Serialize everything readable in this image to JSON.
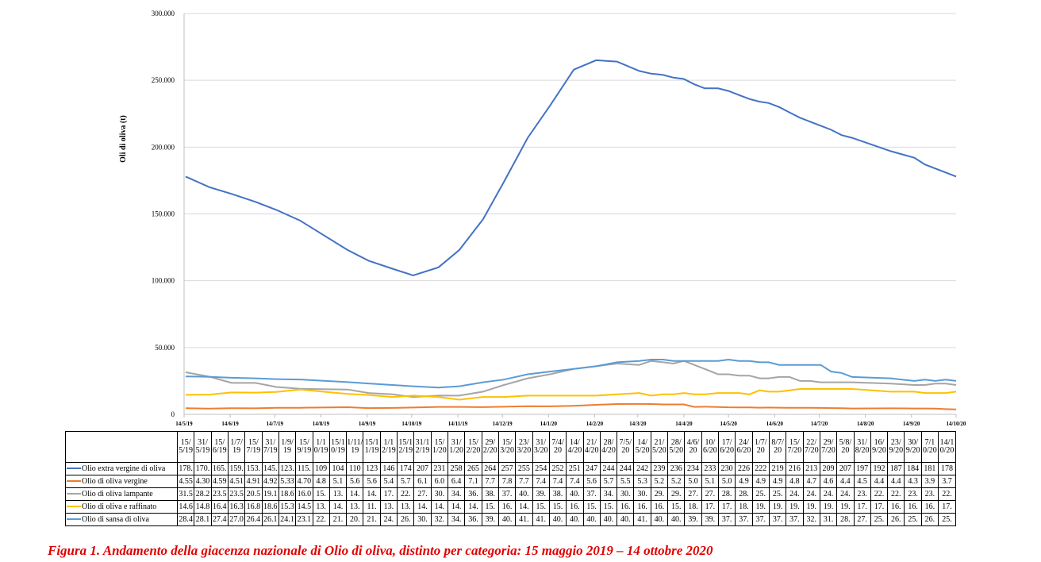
{
  "chart_data": {
    "type": "line",
    "y_label": "Oli di oliva (t)",
    "caption": "Figura 1. Andamento della giacenza nazionale di Olio di oliva, distinto per categoria: 15 maggio 2019 – 14 ottobre 2020",
    "x": [
      "15/5/19",
      "31/5/19",
      "15/6/19",
      "1/7/19",
      "15/7/19",
      "31/7/19",
      "1/9/19",
      "15/9/19",
      "1/10/19",
      "15/10/19",
      "1/11/19",
      "15/11/19",
      "1/12/19",
      "15/12/19",
      "31/12/19",
      "15/1/20",
      "31/1/20",
      "15/2/20",
      "29/2/20",
      "15/3/20",
      "23/3/20",
      "31/3/20",
      "7/4/20",
      "14/4/20",
      "21/4/20",
      "28/4/20",
      "7/5/20",
      "14/5/20",
      "21/5/20",
      "28/5/20",
      "4/6/20",
      "10/6/20",
      "17/6/20",
      "24/6/20",
      "1/7/20",
      "8/7/20",
      "15/7/20",
      "22/7/20",
      "29/7/20",
      "5/8/20",
      "31/8/20",
      "16/9/20",
      "23/9/20",
      "30/9/20",
      "7/10/20",
      "14/10/20"
    ],
    "xlim": [
      "14/5/19",
      "14/10/20"
    ],
    "xticks": [
      "14/5/19",
      "14/6/19",
      "14/7/19",
      "14/8/19",
      "14/9/19",
      "14/10/19",
      "14/11/19",
      "14/12/19",
      "14/1/20",
      "14/2/20",
      "14/3/20",
      "14/4/20",
      "14/5/20",
      "14/6/20",
      "14/7/20",
      "14/8/20",
      "14/9/20",
      "14/10/20"
    ],
    "ylim": [
      0,
      300000
    ],
    "yticks": [
      0,
      {
        "value": 50000,
        "label": "50.000"
      },
      {
        "value": 100000,
        "label": "100.000"
      },
      {
        "value": 150000,
        "label": "150.000"
      },
      {
        "value": 200000,
        "label": "200.000"
      },
      {
        "value": 250000,
        "label": "250.000"
      },
      {
        "value": 300000,
        "label": "300.000"
      }
    ],
    "grid": true,
    "series": [
      {
        "name": "Olio extra vergine di oliva",
        "color": "#4472c4",
        "values": [
          178000,
          170000,
          165000,
          159000,
          153000,
          145000,
          123000,
          115000,
          109000,
          104000,
          110000,
          123000,
          146000,
          174000,
          207000,
          231000,
          258000,
          265000,
          264000,
          257000,
          255000,
          254000,
          252000,
          251000,
          247000,
          244000,
          244000,
          242000,
          239000,
          236000,
          234000,
          233000,
          230000,
          226000,
          222000,
          219000,
          216000,
          213000,
          209000,
          207000,
          197000,
          192000,
          187000,
          184000,
          181000,
          178000
        ],
        "value_labels": [
          "178.",
          "170.",
          "165.",
          "159.",
          "153.",
          "145.",
          "123.",
          "115.",
          "109",
          "104",
          "110",
          "123",
          "146",
          "174",
          "207",
          "231",
          "258",
          "265",
          "264",
          "257",
          "255",
          "254",
          "252",
          "251",
          "247",
          "244",
          "244",
          "242",
          "239",
          "236",
          "234",
          "233",
          "230",
          "226",
          "222",
          "219",
          "216",
          "213",
          "209",
          "207",
          "197",
          "192",
          "187",
          "184",
          "181",
          "178"
        ]
      },
      {
        "name": "Olio di oliva vergine",
        "color": "#ed7d31",
        "values": [
          4550,
          4300,
          4590,
          4510,
          4910,
          4920,
          5330,
          4700,
          4800,
          5100,
          5600,
          5600,
          5400,
          5700,
          6100,
          6000,
          6400,
          7100,
          7700,
          7800,
          7700,
          7400,
          7400,
          7400,
          5600,
          5700,
          5500,
          5300,
          5200,
          5200,
          5000,
          5100,
          5000,
          4900,
          4900,
          4900,
          4800,
          4700,
          4600,
          4400,
          4500,
          4400,
          4400,
          4300,
          3900,
          3700
        ],
        "value_labels": [
          "4.55",
          "4.30",
          "4.59",
          "4.51",
          "4.91",
          "4.92",
          "5.33",
          "4.70",
          "4.8",
          "5.1",
          "5.6",
          "5.6",
          "5.4",
          "5.7",
          "6.1",
          "6.0",
          "6.4",
          "7.1",
          "7.7",
          "7.8",
          "7.7",
          "7.4",
          "7.4",
          "7.4",
          "5.6",
          "5.7",
          "5.5",
          "5.3",
          "5.2",
          "5.2",
          "5.0",
          "5.1",
          "5.0",
          "4.9",
          "4.9",
          "4.9",
          "4.8",
          "4.7",
          "4.6",
          "4.4",
          "4.5",
          "4.4",
          "4.4",
          "4.3",
          "3.9",
          "3.7"
        ]
      },
      {
        "name": "Olio di oliva lampante",
        "color": "#a5a5a5",
        "values": [
          31500,
          28200,
          23500,
          23500,
          20500,
          19100,
          18600,
          16000,
          15000,
          13000,
          14000,
          14000,
          17000,
          22000,
          27000,
          30000,
          34000,
          36000,
          38000,
          37000,
          40000,
          39000,
          38000,
          40000,
          37000,
          34000,
          30000,
          30000,
          29000,
          29000,
          27000,
          27000,
          28000,
          28000,
          25000,
          25000,
          24000,
          24000,
          24000,
          24000,
          23000,
          22000,
          22000,
          23000,
          23000,
          22000
        ],
        "value_labels": [
          "31.5",
          "28.2",
          "23.5",
          "23.5",
          "20.5",
          "19.1",
          "18.6",
          "16.0",
          "15.",
          "13.",
          "14.",
          "14.",
          "17.",
          "22.",
          "27.",
          "30.",
          "34.",
          "36.",
          "38.",
          "37.",
          "40.",
          "39.",
          "38.",
          "40.",
          "37.",
          "34.",
          "30.",
          "30.",
          "29.",
          "29.",
          "27.",
          "27.",
          "28.",
          "28.",
          "25.",
          "25.",
          "24.",
          "24.",
          "24.",
          "24.",
          "23.",
          "22.",
          "22.",
          "23.",
          "23.",
          "22."
        ]
      },
      {
        "name": "Olio di oliva e raffinato",
        "color": "#ffc000",
        "values": [
          14600,
          14800,
          16400,
          16300,
          16800,
          18600,
          15300,
          14500,
          13000,
          14000,
          13000,
          11000,
          13000,
          13000,
          14000,
          14000,
          14000,
          14000,
          15000,
          16000,
          14000,
          15000,
          15000,
          16000,
          15000,
          15000,
          16000,
          16000,
          16000,
          15000,
          18000,
          17000,
          17000,
          18000,
          19000,
          19000,
          19000,
          19000,
          19000,
          19000,
          17000,
          17000,
          16000,
          16000,
          16000,
          17000
        ],
        "value_labels": [
          "14.6",
          "14.8",
          "16.4",
          "16.3",
          "16.8",
          "18.6",
          "15.3",
          "14.5",
          "13.",
          "14.",
          "13.",
          "11.",
          "13.",
          "13.",
          "14.",
          "14.",
          "14.",
          "14.",
          "15.",
          "16.",
          "14.",
          "15.",
          "15.",
          "16.",
          "15.",
          "15.",
          "16.",
          "16.",
          "16.",
          "15.",
          "18.",
          "17.",
          "17.",
          "18.",
          "19.",
          "19.",
          "19.",
          "19.",
          "19.",
          "19.",
          "17.",
          "17.",
          "16.",
          "16.",
          "16.",
          "17."
        ]
      },
      {
        "name": "Olio di sansa di oliva",
        "color": "#5b9bd5",
        "values": [
          28400,
          28100,
          27400,
          27000,
          26400,
          26100,
          24100,
          23100,
          22000,
          21000,
          20000,
          21000,
          24000,
          26000,
          30000,
          32000,
          34000,
          36000,
          39000,
          40000,
          41000,
          41000,
          40000,
          40000,
          40000,
          40000,
          40000,
          41000,
          40000,
          40000,
          39000,
          39000,
          37000,
          37000,
          37000,
          37000,
          37000,
          32000,
          31000,
          28000,
          27000,
          25000,
          26000,
          25000,
          26000,
          25000
        ],
        "value_labels": [
          "28.4",
          "28.1",
          "27.4",
          "27.0",
          "26.4",
          "26.1",
          "24.1",
          "23.1",
          "22.",
          "21.",
          "20.",
          "21.",
          "24.",
          "26.",
          "30.",
          "32.",
          "34.",
          "36.",
          "39.",
          "40.",
          "41.",
          "41.",
          "40.",
          "40.",
          "40.",
          "40.",
          "40.",
          "41.",
          "40.",
          "40.",
          "39.",
          "39.",
          "37.",
          "37.",
          "37.",
          "37.",
          "37.",
          "32.",
          "31.",
          "28.",
          "27.",
          "25.",
          "26.",
          "25.",
          "26.",
          "25."
        ]
      }
    ]
  }
}
